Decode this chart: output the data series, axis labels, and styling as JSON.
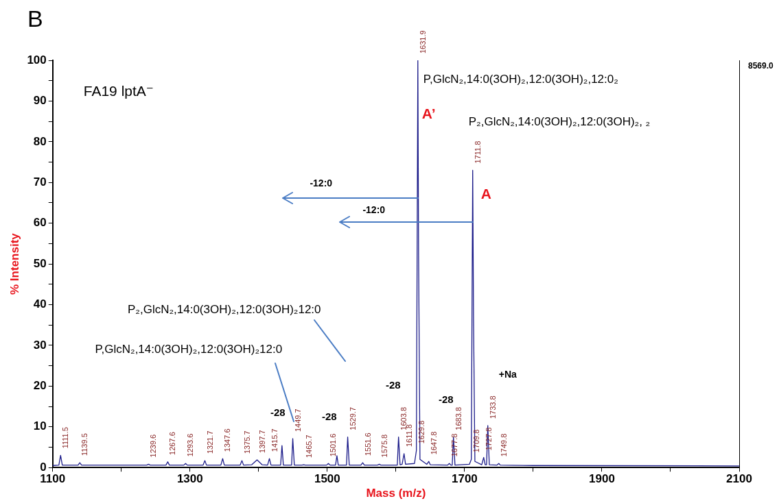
{
  "chart_data": {
    "type": "line",
    "title": "FA19 lptA⁻",
    "xlabel": "Mass (m/z)",
    "ylabel": "% Intensity",
    "color": "#1c1c8a",
    "marker": "none",
    "grid": false,
    "legend": false,
    "xlim": [
      1100,
      2100
    ],
    "ylim": [
      0,
      100
    ],
    "xticks": [
      1100,
      {
        "value": 1200,
        "label": null
      },
      1300,
      {
        "value": 1400,
        "label": null
      },
      1500,
      {
        "value": 1600,
        "label": null
      },
      1700,
      {
        "value": 1800,
        "label": null
      },
      1900,
      {
        "value": 2000,
        "label": null
      },
      2100
    ],
    "yticks": [
      0,
      {
        "value": 5,
        "label": null
      },
      10,
      {
        "value": 15,
        "label": null
      },
      20,
      {
        "value": 25,
        "label": null
      },
      30,
      {
        "value": 35,
        "label": null
      },
      40,
      {
        "value": 45,
        "label": null
      },
      50,
      {
        "value": 55,
        "label": null
      },
      60,
      {
        "value": 65,
        "label": null
      },
      70,
      {
        "value": 75,
        "label": null
      },
      80,
      {
        "value": 85,
        "label": null
      },
      90,
      {
        "value": 95,
        "label": null
      },
      100
    ],
    "x": [
      1100,
      1109,
      1111.5,
      1114,
      1137,
      1139.5,
      1142,
      1237,
      1239.6,
      1242,
      1265,
      1267.6,
      1270,
      1291,
      1293.6,
      1296,
      1319,
      1321.7,
      1324,
      1345,
      1347.6,
      1350,
      1373,
      1375.7,
      1378,
      1390,
      1397.7,
      1405,
      1413,
      1415.7,
      1418,
      1432,
      1434,
      1436,
      1448,
      1449.7,
      1452,
      1463,
      1465.7,
      1468,
      1499,
      1501.6,
      1504,
      1512,
      1514,
      1516,
      1528,
      1529.7,
      1532,
      1549,
      1551.6,
      1554,
      1573,
      1575.8,
      1578,
      1602,
      1603.8,
      1606,
      1609,
      1611.8,
      1614,
      1627,
      1629.8,
      1631.9,
      1633,
      1635,
      1645,
      1647.8,
      1650,
      1675,
      1677.8,
      1680,
      1682,
      1683.8,
      1686,
      1707,
      1709.8,
      1711.8,
      1713,
      1715,
      1725,
      1727.8,
      1730,
      1732,
      1733.8,
      1736,
      1747,
      1749.8,
      1752,
      1800,
      2100
    ],
    "values": [
      0.5,
      0.6,
      3.0,
      0.6,
      0.6,
      1.2,
      0.6,
      0.6,
      0.8,
      0.6,
      0.6,
      1.4,
      0.6,
      0.6,
      1.0,
      0.6,
      0.6,
      1.7,
      0.6,
      0.6,
      2.2,
      0.6,
      0.6,
      1.7,
      0.6,
      0.7,
      1.9,
      0.7,
      0.6,
      2.2,
      0.6,
      0.6,
      5.4,
      0.6,
      0.6,
      7.1,
      0.6,
      0.6,
      0.7,
      0.6,
      0.6,
      1.0,
      0.6,
      0.6,
      2.9,
      0.6,
      0.6,
      7.5,
      0.6,
      0.6,
      1.2,
      0.6,
      0.6,
      0.8,
      0.6,
      0.6,
      7.5,
      0.7,
      0.8,
      3.4,
      0.8,
      1.0,
      4.2,
      100,
      52,
      2.0,
      0.8,
      1.5,
      0.7,
      0.6,
      1.0,
      0.6,
      0.6,
      7.5,
      0.6,
      0.8,
      2.0,
      73,
      37,
      1.5,
      0.7,
      2.5,
      0.7,
      0.7,
      10.3,
      0.7,
      0.6,
      1.0,
      0.6,
      0.5,
      0.4
    ],
    "annotations": [
      "B",
      "8569.0",
      {
        "text": "P,GlcN₂,14:0(3OH)₂,12:0(3OH)₂,12:0₂",
        "x": 1631.9,
        "y": 100
      },
      {
        "text": "A’",
        "x": 1631.9,
        "y": 88
      },
      "P₂,GlcN₂,14:0(3OH)₂,12:0(3OH)₂, ₂",
      {
        "text": "A",
        "x": 1711.8,
        "y": 70
      },
      "-12:0",
      "-12:0",
      "P₂,GlcN₂,14:0(3OH)₂,12:0(3OH)₂12:0",
      "P,GlcN₂,14:0(3OH)₂,12:0(3OH)₂12:0",
      "-28",
      "-28",
      "-28",
      "-28",
      "+Na",
      {
        "text": "1111.5",
        "x": 1111.5,
        "y": 3.0
      },
      {
        "text": "1139.5",
        "x": 1139.5,
        "y": 1.2
      },
      {
        "text": "1239.6",
        "x": 1239.6,
        "y": 0.8
      },
      {
        "text": "1267.6",
        "x": 1267.6,
        "y": 1.4
      },
      {
        "text": "1293.6",
        "x": 1293.6,
        "y": 1.0
      },
      {
        "text": "1321.7",
        "x": 1321.7,
        "y": 1.7
      },
      {
        "text": "1347.6",
        "x": 1347.6,
        "y": 2.2
      },
      {
        "text": "1375.7",
        "x": 1375.7,
        "y": 1.7
      },
      {
        "text": "1397.7",
        "x": 1397.7,
        "y": 1.9
      },
      {
        "text": "1415.7",
        "x": 1415.7,
        "y": 2.2
      },
      {
        "text": "1449.7",
        "x": 1449.7,
        "y": 7.1
      },
      {
        "text": "1465.7",
        "x": 1465.7,
        "y": 0.7
      },
      {
        "text": "1501.6",
        "x": 1501.6,
        "y": 1.0
      },
      {
        "text": "1529.7",
        "x": 1529.7,
        "y": 7.5
      },
      {
        "text": "1551.6",
        "x": 1551.6,
        "y": 1.2
      },
      {
        "text": "1575.8",
        "x": 1575.8,
        "y": 0.8
      },
      {
        "text": "1603.8",
        "x": 1603.8,
        "y": 7.5
      },
      {
        "text": "1611.8",
        "x": 1611.8,
        "y": 3.4
      },
      {
        "text": "1629.8",
        "x": 1629.8,
        "y": 4.2
      },
      {
        "text": "1631.9",
        "x": 1631.9,
        "y": 100
      },
      {
        "text": "1647.8",
        "x": 1647.8,
        "y": 1.5
      },
      {
        "text": "1677.8",
        "x": 1677.8,
        "y": 1.0
      },
      {
        "text": "1683.8",
        "x": 1683.8,
        "y": 7.5
      },
      {
        "text": "1709.8",
        "x": 1709.8,
        "y": 2.0
      },
      {
        "text": "1711.8",
        "x": 1711.8,
        "y": 73
      },
      {
        "text": "1727.8",
        "x": 1727.8,
        "y": 2.5
      },
      {
        "text": "1733.8",
        "x": 1733.8,
        "y": 10.3
      },
      {
        "text": "1749.8",
        "x": 1749.8,
        "y": 1.0
      }
    ]
  }
}
